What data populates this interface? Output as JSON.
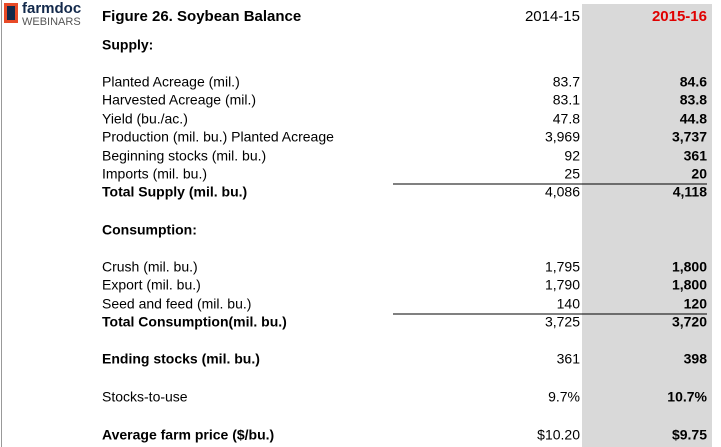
{
  "logo": {
    "brand": "farmdoc",
    "sub": "WEBINARS"
  },
  "header": {
    "title": "Figure 26. Soybean Balance",
    "col1": "2014-15",
    "col2": "2015-16"
  },
  "rows": [
    {
      "label": "Supply:",
      "bold": true
    },
    {
      "label": "Planted Acreage (mil.)",
      "v1": "83.7",
      "v2": "84.6"
    },
    {
      "label": "Harvested Acreage (mil.)",
      "v1": "83.1",
      "v2": "83.8"
    },
    {
      "label": "Yield (bu./ac.)",
      "v1": "47.8",
      "v2": "44.8"
    },
    {
      "label": "Production (mil. bu.) Planted Acreage",
      "v1": "3,969",
      "v2": "3,737"
    },
    {
      "label": "Beginning stocks (mil. bu.)",
      "v1": "92",
      "v2": "361"
    },
    {
      "label": "Imports (mil. bu.)",
      "v1": "25",
      "v2": "20"
    },
    {
      "label": "Total Supply (mil. bu.)",
      "v1": "4,086",
      "v2": "4,118",
      "bold": true,
      "rule_above": true
    },
    {
      "label": "Consumption:",
      "bold": true
    },
    {
      "label": "Crush (mil. bu.)",
      "v1": "1,795",
      "v2": "1,800"
    },
    {
      "label": "Export (mil. bu.)",
      "v1": "1,790",
      "v2": "1,800"
    },
    {
      "label": "Seed and feed (mil. bu.)",
      "v1": "140",
      "v2": "120"
    },
    {
      "label": "Total Consumption(mil. bu.)",
      "v1": "3,725",
      "v2": "3,720",
      "bold": true,
      "rule_above": true
    },
    {
      "label": "Ending stocks (mil. bu.)",
      "v1": "361",
      "v2": "398",
      "bold": true
    },
    {
      "label": "Stocks-to-use",
      "v1": "9.7%",
      "v2": "10.7%"
    },
    {
      "label": "Average farm price ($/bu.)",
      "v1": "$10.20",
      "v2": "$9.75",
      "bold": true
    }
  ]
}
